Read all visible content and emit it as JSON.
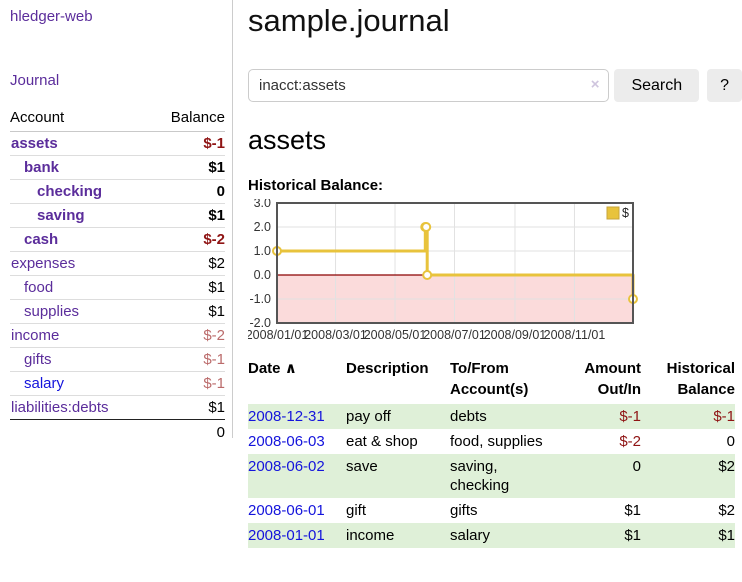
{
  "app": {
    "title": "hledger-web",
    "nav_journal": "Journal"
  },
  "colors": {
    "link_purple": "#5b2d9b",
    "link_blue": "#1414dc",
    "negative_strong": "#8f1414",
    "negative_muted": "#bb6b6b",
    "row_stripe_green": "#dff0d8",
    "chart_gold": "#e8c33c"
  },
  "sidebar": {
    "headers": {
      "account": "Account",
      "balance": "Balance"
    },
    "accounts": [
      {
        "name": "assets",
        "indent": 0,
        "bold": true,
        "link": "visited",
        "amount": "$-1",
        "amount_class": "neg"
      },
      {
        "name": "bank",
        "indent": 1,
        "bold": true,
        "link": "visited",
        "amount": "$1",
        "amount_class": "pos"
      },
      {
        "name": "checking",
        "indent": 2,
        "bold": true,
        "link": "visited",
        "amount": "0",
        "amount_class": "pos"
      },
      {
        "name": "saving",
        "indent": 2,
        "bold": true,
        "link": "visited",
        "amount": "$1",
        "amount_class": "pos"
      },
      {
        "name": "cash",
        "indent": 1,
        "bold": true,
        "link": "visited",
        "amount": "$-2",
        "amount_class": "neg"
      },
      {
        "name": "expenses",
        "indent": 0,
        "bold": false,
        "link": "visited",
        "amount": "$2",
        "amount_class": "pos"
      },
      {
        "name": "food",
        "indent": 1,
        "bold": false,
        "link": "visited",
        "amount": "$1",
        "amount_class": "pos"
      },
      {
        "name": "supplies",
        "indent": 1,
        "bold": false,
        "link": "visited",
        "amount": "$1",
        "amount_class": "pos"
      },
      {
        "name": "income",
        "indent": 0,
        "bold": false,
        "link": "visited",
        "amount": "$-2",
        "amount_class": "neg-muted"
      },
      {
        "name": "gifts",
        "indent": 1,
        "bold": false,
        "link": "visited",
        "amount": "$-1",
        "amount_class": "neg-muted"
      },
      {
        "name": "salary",
        "indent": 1,
        "bold": false,
        "link": "unvisited",
        "amount": "$-1",
        "amount_class": "neg-muted"
      },
      {
        "name": "liabilities:debts",
        "indent": 0,
        "bold": false,
        "link": "visited",
        "amount": "$1",
        "amount_class": "pos"
      }
    ],
    "total": "0"
  },
  "header": {
    "title": "sample.journal"
  },
  "search": {
    "value": "inacct:assets",
    "clear_icon": "×",
    "button_label": "Search",
    "help_label": "?"
  },
  "account_page": {
    "heading": "assets",
    "chart_label": "Historical Balance:"
  },
  "chart_data": {
    "type": "line",
    "title": "Historical Balance",
    "xlim": [
      "2008-01-01",
      "2008-12-31"
    ],
    "ylim": [
      -2,
      3
    ],
    "y_ticks": [
      3.0,
      2.0,
      1.0,
      0.0,
      -1.0,
      -2.0
    ],
    "x_ticks": [
      "2008/01/01",
      "2008/03/01",
      "2008/05/01",
      "2008/07/01",
      "2008/09/01",
      "2008/11/01"
    ],
    "grid": true,
    "negative_fill": "#fbdbdb",
    "zero_line_color": "#8b0000",
    "legend": {
      "label": "$",
      "position": "top-right"
    },
    "series": [
      {
        "name": "$",
        "color": "#e8c33c",
        "step": true,
        "points": [
          [
            "2008-01-01",
            1
          ],
          [
            "2008-06-01",
            2
          ],
          [
            "2008-06-02",
            2
          ],
          [
            "2008-06-03",
            0
          ],
          [
            "2008-12-31",
            -1
          ]
        ]
      }
    ]
  },
  "transactions": {
    "headers": {
      "date": "Date",
      "sort_indicator": "∧",
      "description": "Description",
      "accounts": "To/From\nAccount(s)",
      "amount": "Amount\nOut/In",
      "balance": "Historical\nBalance"
    },
    "rows": [
      {
        "date": "2008-12-31",
        "description": "pay off",
        "accounts": "debts",
        "amount": "$-1",
        "amount_class": "neg",
        "balance": "$-1",
        "balance_class": "neg"
      },
      {
        "date": "2008-06-03",
        "description": "eat & shop",
        "accounts": "food, supplies",
        "amount": "$-2",
        "amount_class": "neg",
        "balance": "0",
        "balance_class": "pos"
      },
      {
        "date": "2008-06-02",
        "description": "save",
        "accounts": "saving,\nchecking",
        "amount": "0",
        "amount_class": "pos",
        "balance": "$2",
        "balance_class": "pos"
      },
      {
        "date": "2008-06-01",
        "description": "gift",
        "accounts": "gifts",
        "amount": "$1",
        "amount_class": "pos",
        "balance": "$2",
        "balance_class": "pos"
      },
      {
        "date": "2008-01-01",
        "description": "income",
        "accounts": "salary",
        "amount": "$1",
        "amount_class": "pos",
        "balance": "$1",
        "balance_class": "pos"
      }
    ]
  }
}
